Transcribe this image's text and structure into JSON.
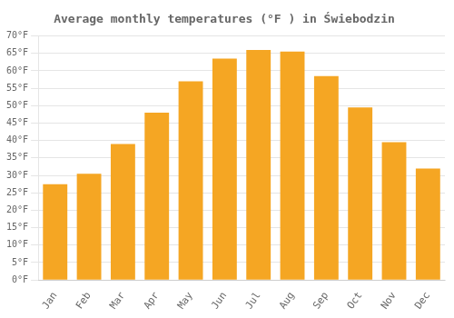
{
  "chart_data": {
    "type": "bar",
    "title": "Average monthly temperatures (°F ) in Świebodzin",
    "categories": [
      "Jan",
      "Feb",
      "Mar",
      "Apr",
      "May",
      "Jun",
      "Jul",
      "Aug",
      "Sep",
      "Oct",
      "Nov",
      "Dec"
    ],
    "values": [
      27.5,
      30.5,
      39.0,
      48.0,
      57.0,
      63.5,
      66.0,
      65.5,
      58.5,
      49.5,
      39.5,
      32.0
    ],
    "color": "#F5A623",
    "ylim": [
      0,
      70
    ],
    "yticks": [
      {
        "value": 0,
        "label": "0°F"
      },
      {
        "value": 5,
        "label": "5°F"
      },
      {
        "value": 10,
        "label": "10°F"
      },
      {
        "value": 15,
        "label": "15°F"
      },
      {
        "value": 20,
        "label": "20°F"
      },
      {
        "value": 25,
        "label": "25°F"
      },
      {
        "value": 30,
        "label": "30°F"
      },
      {
        "value": 35,
        "label": "35°F"
      },
      {
        "value": 40,
        "label": "40°F"
      },
      {
        "value": 45,
        "label": "45°F"
      },
      {
        "value": 50,
        "label": "50°F"
      },
      {
        "value": 55,
        "label": "55°F"
      },
      {
        "value": 60,
        "label": "60°F"
      },
      {
        "value": 65,
        "label": "65°F"
      },
      {
        "value": 70,
        "label": "70°F"
      }
    ],
    "grid": true
  }
}
